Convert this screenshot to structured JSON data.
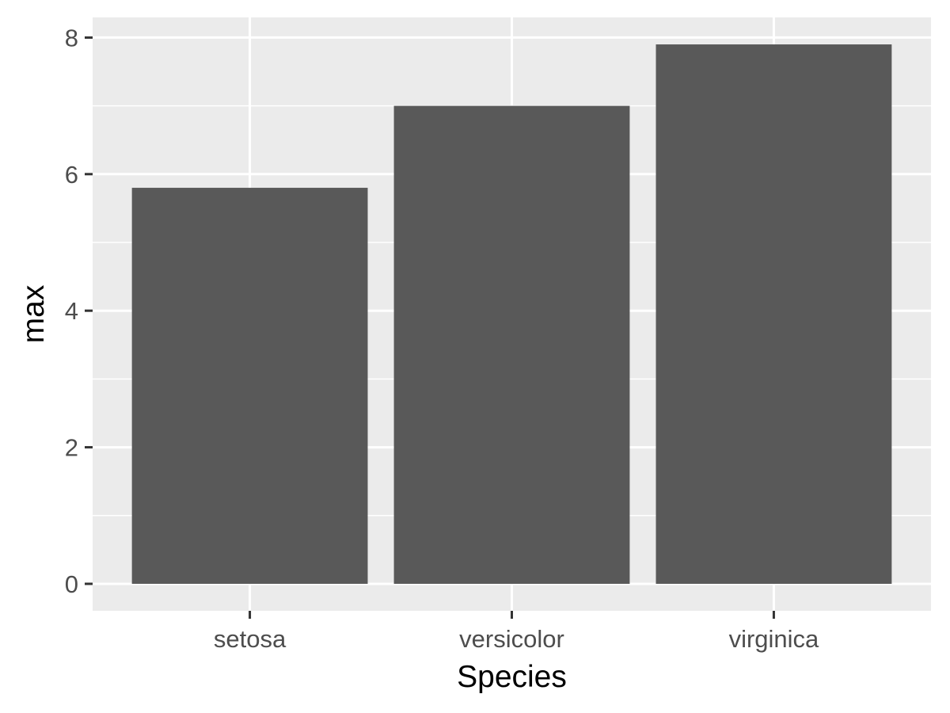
{
  "chart_data": {
    "type": "bar",
    "title": "",
    "xlabel": "Species",
    "ylabel": "max",
    "categories": [
      "setosa",
      "versicolor",
      "virginica"
    ],
    "values": [
      5.8,
      7.0,
      7.9
    ],
    "ylim": [
      -0.395,
      8.295
    ],
    "yticks": [
      0,
      2,
      4,
      6,
      8
    ],
    "grid": true,
    "legend": "none",
    "colors": {
      "bar": "#595959",
      "panel": "#ebebeb",
      "grid": "#ffffff",
      "tick": "#333333",
      "tick_label": "#4d4d4d",
      "axis_title": "#000000"
    }
  }
}
